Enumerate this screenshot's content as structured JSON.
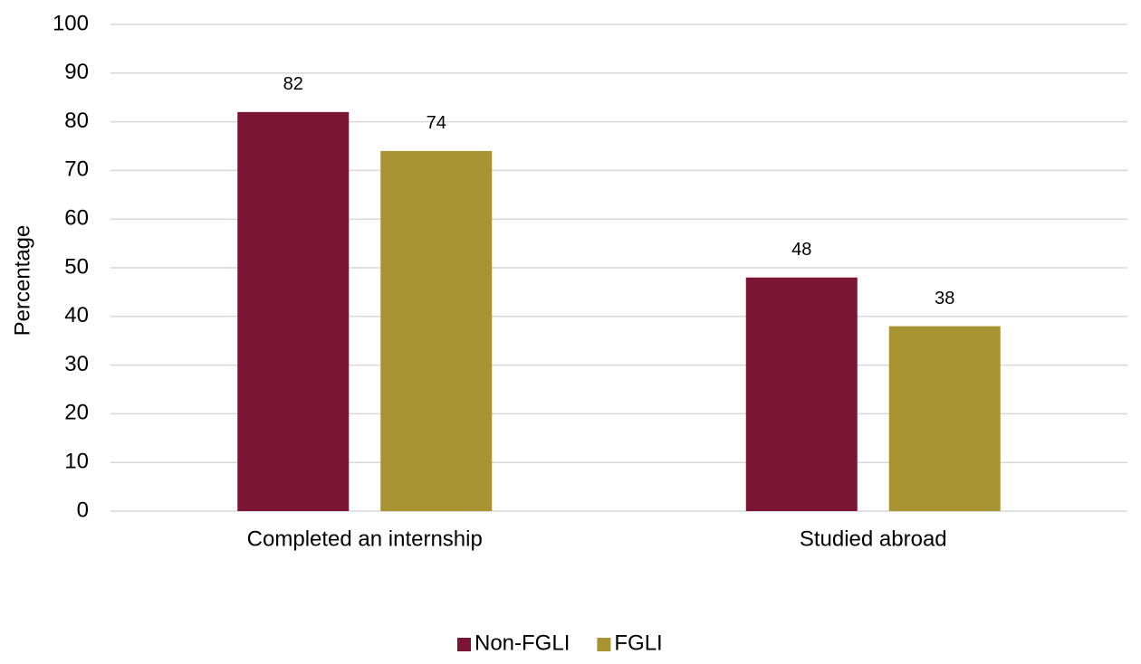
{
  "chart_data": {
    "type": "bar",
    "y_label": "Percentage",
    "categories": [
      "Completed an internship",
      "Studied abroad"
    ],
    "series": [
      {
        "name": "Non-FGLI",
        "color": "#7b1534",
        "values": [
          82,
          48
        ]
      },
      {
        "name": "FGLI",
        "color": "#a89433",
        "values": [
          74,
          38
        ]
      }
    ],
    "ylim": [
      0,
      100
    ],
    "yticks": [
      0,
      10,
      20,
      30,
      40,
      50,
      60,
      70,
      80,
      90,
      100
    ],
    "grid": true,
    "legend": "bottom",
    "data_labels": true
  }
}
